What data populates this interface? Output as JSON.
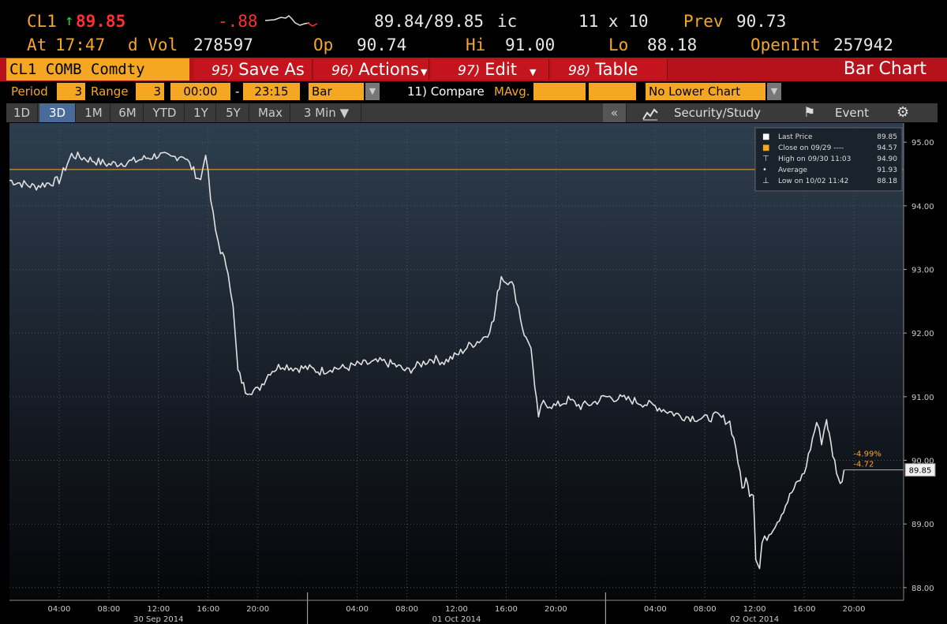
{
  "quote": {
    "ticker": "CL1",
    "last": "89.85",
    "change": "-.88",
    "bid_ask": "89.84/89.85",
    "bid_ask_cond": "ic",
    "size": "11 x 10",
    "prev_label": "Prev",
    "prev": "90.73",
    "at_label": "At",
    "time": "17:47",
    "dvol_label": "d Vol",
    "dvol": "278597",
    "op_label": "Op",
    "op": "90.74",
    "hi_label": "Hi",
    "hi": "91.00",
    "lo_label": "Lo",
    "lo": "88.18",
    "oi_label": "OpenInt",
    "oi": "257942"
  },
  "cmdbar": {
    "security": "CL1 COMB Comdty",
    "buttons": [
      {
        "num": "95)",
        "label": "Save As"
      },
      {
        "num": "96)",
        "label": "Actions"
      },
      {
        "num": "97)",
        "label": "Edit"
      },
      {
        "num": "98)",
        "label": "Table"
      }
    ],
    "title": "Bar Chart"
  },
  "options": {
    "period_label": "Period",
    "period": "3",
    "range_label": "Range",
    "range": "3",
    "time_from": "00:00",
    "dash": "-",
    "time_to": "23:15",
    "type": "Bar",
    "compare": "11) Compare",
    "mavg": "MAvg.",
    "lower": "No Lower Chart"
  },
  "tabs": {
    "items": [
      "1D",
      "3D",
      "1M",
      "6M",
      "YTD",
      "1Y",
      "5Y",
      "Max",
      "3 Min ▼"
    ],
    "active": "3D",
    "collapse": "«",
    "study": "Security/Study",
    "event": "Event"
  },
  "colors": {
    "accent": "#f5a623",
    "command_bar": "#b5121b",
    "active_tab": "#4a6a9a",
    "up": "#22cc44",
    "down": "#ff3030",
    "price_line": "#e0e0e0"
  },
  "chart_data": {
    "type": "line",
    "ylim": [
      87.8,
      95.3
    ],
    "y_ticks": [
      "95.00",
      "94.00",
      "93.00",
      "92.00",
      "91.00",
      "90.00",
      "89.00",
      "88.00"
    ],
    "x_ticks": [
      "04:00",
      "08:00",
      "12:00",
      "16:00",
      "20:00",
      "04:00",
      "08:00",
      "12:00",
      "16:00",
      "20:00",
      "04:00",
      "08:00",
      "12:00",
      "16:00",
      "20:00"
    ],
    "x_hours": [
      4,
      8,
      12,
      16,
      20,
      28,
      32,
      36,
      40,
      44,
      52,
      56,
      60,
      64,
      68
    ],
    "day_labels": [
      "30 Sep 2014",
      "01 Oct 2014",
      "02 Oct 2014"
    ],
    "day_label_hours": [
      12,
      36,
      60
    ],
    "day_breaks": [
      24,
      48
    ],
    "x_range_hours": [
      0,
      72
    ],
    "legend": [
      {
        "label": "Last Price",
        "value": "89.85"
      },
      {
        "label": "Close on 09/29 ----",
        "value": "94.57"
      },
      {
        "label": "High on 09/30 11:03",
        "value": "94.90"
      },
      {
        "label": "Average",
        "value": "91.93"
      },
      {
        "label": "Low on 10/02 11:42",
        "value": "88.18"
      }
    ],
    "close_reference": 94.57,
    "last_price_tag": "89.85",
    "pct_change": "-4.99%",
    "abs_change": "-4.72",
    "series": [
      {
        "x_hours": [
          0,
          2,
          4,
          5,
          6,
          7,
          8,
          10,
          12,
          13,
          14,
          15,
          15.4,
          15.8,
          16.2,
          16.6,
          17,
          17.6,
          18,
          18.4,
          19,
          20,
          20.5,
          21,
          22,
          23,
          24,
          25,
          26,
          27,
          28,
          30,
          31,
          32,
          33,
          34,
          35,
          36,
          37,
          38,
          38.5,
          39,
          39.3,
          39.6,
          40,
          40.3,
          40.6,
          41,
          41.3,
          41.6,
          42,
          42.3,
          42.6,
          43,
          44,
          45,
          46,
          47,
          48,
          50,
          52,
          54,
          56,
          57,
          58,
          58.5,
          59,
          59.3,
          59.6,
          59.9,
          60.1,
          60.4,
          60.6,
          61,
          62,
          63,
          64,
          64.5,
          65,
          65.4,
          65.8,
          66,
          66.3,
          66.6,
          66.9,
          67.2
        ],
        "y": [
          94.4,
          94.3,
          94.4,
          94.8,
          94.75,
          94.7,
          94.65,
          94.7,
          94.8,
          94.75,
          94.8,
          94.5,
          94.4,
          94.85,
          94.1,
          93.6,
          93.3,
          93.0,
          92.4,
          91.4,
          91.1,
          91.1,
          91.25,
          91.4,
          91.5,
          91.45,
          91.45,
          91.4,
          91.45,
          91.45,
          91.5,
          91.55,
          91.5,
          91.4,
          91.5,
          91.6,
          91.55,
          91.65,
          91.8,
          91.9,
          92.0,
          92.2,
          92.6,
          92.9,
          92.8,
          92.85,
          92.7,
          92.4,
          92.1,
          91.9,
          91.8,
          91.1,
          90.7,
          90.9,
          90.85,
          90.95,
          90.85,
          90.9,
          91.0,
          90.95,
          90.85,
          90.7,
          90.65,
          90.7,
          90.6,
          90.2,
          89.55,
          89.7,
          89.5,
          89.5,
          88.5,
          88.3,
          88.7,
          88.8,
          89.1,
          89.5,
          89.8,
          90.2,
          90.6,
          90.3,
          90.65,
          90.4,
          90.1,
          89.85,
          89.6,
          89.85
        ]
      }
    ]
  }
}
